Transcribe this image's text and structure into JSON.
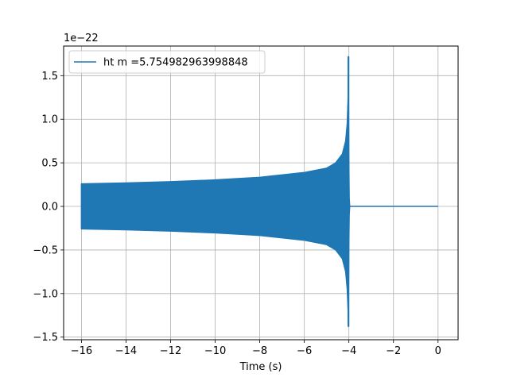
{
  "chart_data": {
    "type": "line",
    "title": "",
    "xlabel": "Time (s)",
    "ylabel": "",
    "y_offset_label": "1e−22",
    "xlim": [
      -16.8,
      0.9
    ],
    "ylim": [
      -1.53,
      1.84
    ],
    "grid": true,
    "legend_position": "top-left",
    "x_ticks": [
      -16,
      -14,
      -12,
      -10,
      -8,
      -6,
      -4,
      -2,
      0
    ],
    "x_tick_labels": [
      "−16",
      "−14",
      "−12",
      "−10",
      "−8",
      "−6",
      "−4",
      "−2",
      "0"
    ],
    "y_ticks": [
      -1.5,
      -1.0,
      -0.5,
      0.0,
      0.5,
      1.0,
      1.5
    ],
    "y_tick_labels": [
      "−1.5",
      "−1.0",
      "−0.5",
      "0.0",
      "0.5",
      "1.0",
      "1.5"
    ],
    "series": [
      {
        "name": "ht m =5.754982963998848",
        "color": "#1f77b4",
        "envelope": {
          "x": [
            -16.0,
            -14.0,
            -12.0,
            -10.0,
            -8.0,
            -6.0,
            -5.0,
            -4.6,
            -4.3,
            -4.15,
            -4.08,
            -4.04,
            -4.02
          ],
          "upper": [
            0.26,
            0.27,
            0.285,
            0.305,
            0.335,
            0.39,
            0.44,
            0.5,
            0.6,
            0.75,
            0.95,
            1.25,
            1.72
          ],
          "lower": [
            -0.26,
            -0.27,
            -0.285,
            -0.305,
            -0.335,
            -0.39,
            -0.44,
            -0.5,
            -0.6,
            -0.75,
            -0.95,
            -1.2,
            -1.38
          ]
        },
        "ringdown": {
          "x": [
            -4.02,
            -4.0,
            -3.98,
            -3.96
          ],
          "upper": [
            1.72,
            0.6,
            0.1,
            0.01
          ],
          "lower": [
            -1.38,
            -0.5,
            -0.1,
            -0.01
          ]
        },
        "flat_segment": {
          "x": [
            -3.96,
            0.0
          ],
          "y": 0.0
        }
      }
    ]
  }
}
